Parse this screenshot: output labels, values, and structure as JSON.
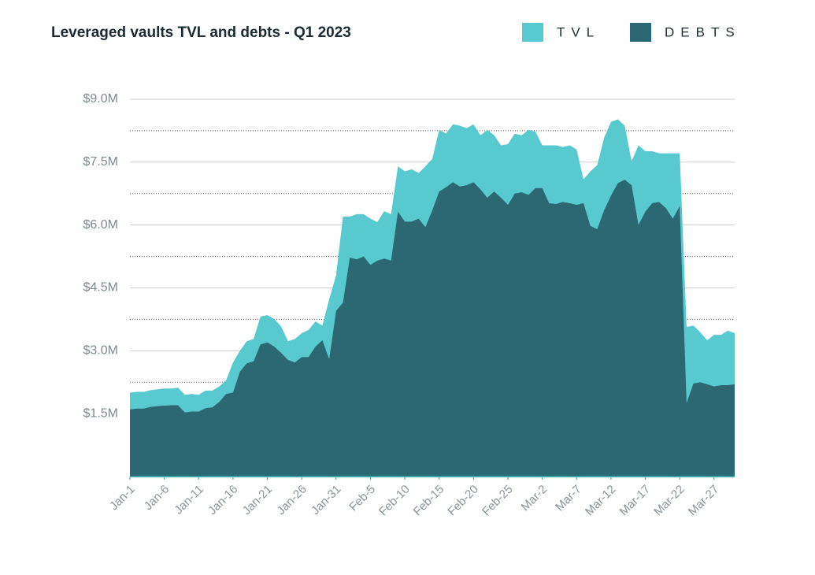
{
  "chart_data": {
    "type": "area",
    "title": "Leveraged vaults TVL and debts - Q1 2023",
    "categories": [
      "Jan-1",
      null,
      null,
      null,
      null,
      "Jan-6",
      null,
      null,
      null,
      null,
      "Jan-11",
      null,
      null,
      null,
      null,
      "Jan-16",
      null,
      null,
      null,
      null,
      "Jan-21",
      null,
      null,
      null,
      null,
      "Jan-26",
      null,
      null,
      null,
      null,
      "Jan-31",
      null,
      null,
      null,
      null,
      "Feb-5",
      null,
      null,
      null,
      null,
      "Feb-10",
      null,
      null,
      null,
      null,
      "Feb-15",
      null,
      null,
      null,
      null,
      "Feb-20",
      null,
      null,
      null,
      null,
      "Feb-25",
      null,
      null,
      null,
      null,
      "Mar-2",
      null,
      null,
      null,
      null,
      "Mar-7",
      null,
      null,
      null,
      null,
      "Mar-12",
      null,
      null,
      null,
      null,
      "Mar-17",
      null,
      null,
      null,
      null,
      "Mar-22",
      null,
      null,
      null,
      null,
      "Mar-27",
      null,
      null,
      null
    ],
    "series": [
      {
        "name": "TVL",
        "color": "#58c9cf",
        "values": [
          2000000,
          2020000,
          2020000,
          2060000,
          2080000,
          2100000,
          2100000,
          2120000,
          1950000,
          1970000,
          1950000,
          2050000,
          2050000,
          2150000,
          2300000,
          2720000,
          3000000,
          3230000,
          3280000,
          3820000,
          3850000,
          3760000,
          3580000,
          3230000,
          3280000,
          3420000,
          3500000,
          3700000,
          3600000,
          4230000,
          4800000,
          6200000,
          6200000,
          6260000,
          6260000,
          6150000,
          6070000,
          6330000,
          6260000,
          7400000,
          7280000,
          7330000,
          7240000,
          7400000,
          7580000,
          8270000,
          8180000,
          8400000,
          8370000,
          8310000,
          8400000,
          8140000,
          8270000,
          8140000,
          7900000,
          7930000,
          8180000,
          8140000,
          8270000,
          8230000,
          7900000,
          7900000,
          7900000,
          7860000,
          7900000,
          7800000,
          7090000,
          7280000,
          7430000,
          8080000,
          8460000,
          8520000,
          8370000,
          7520000,
          7900000,
          7760000,
          7760000,
          7710000,
          7710000,
          7710000,
          7710000,
          3570000,
          3600000,
          3440000,
          3250000,
          3380000,
          3380000,
          3480000,
          3420000
        ]
      },
      {
        "name": "DEBTS",
        "color": "#2b6874",
        "values": [
          1600000,
          1620000,
          1620000,
          1660000,
          1680000,
          1690000,
          1700000,
          1700000,
          1530000,
          1550000,
          1550000,
          1630000,
          1650000,
          1780000,
          1970000,
          2000000,
          2500000,
          2700000,
          2750000,
          3150000,
          3200000,
          3100000,
          2950000,
          2780000,
          2720000,
          2850000,
          2850000,
          3100000,
          3250000,
          2800000,
          3950000,
          4150000,
          5220000,
          5180000,
          5250000,
          5050000,
          5150000,
          5200000,
          5150000,
          6320000,
          6080000,
          6080000,
          6150000,
          5950000,
          6350000,
          6800000,
          6900000,
          7020000,
          6920000,
          6950000,
          7020000,
          6850000,
          6650000,
          6800000,
          6650000,
          6480000,
          6750000,
          6780000,
          6720000,
          6880000,
          6880000,
          6520000,
          6500000,
          6550000,
          6520000,
          6480000,
          6520000,
          5980000,
          5900000,
          6350000,
          6700000,
          7000000,
          7080000,
          6950000,
          6000000,
          6320000,
          6520000,
          6550000,
          6400000,
          6150000,
          6450000,
          1750000,
          2220000,
          2250000,
          2200000,
          2150000,
          2180000,
          2180000,
          2200000
        ]
      }
    ],
    "ylim": [
      0,
      9000000
    ],
    "yticks": [
      {
        "value": 1500000,
        "label": "$1.5M"
      },
      {
        "value": 3000000,
        "label": "$3.0M"
      },
      {
        "value": 4500000,
        "label": "$4.5M"
      },
      {
        "value": 6000000,
        "label": "$6.0M"
      },
      {
        "value": 7500000,
        "label": "$7.5M"
      },
      {
        "value": 9000000,
        "label": "$9.0M"
      }
    ],
    "minor_yticks": [
      2250000,
      3750000,
      5250000,
      6750000,
      8250000
    ],
    "grid": true,
    "legend": "top-right"
  }
}
